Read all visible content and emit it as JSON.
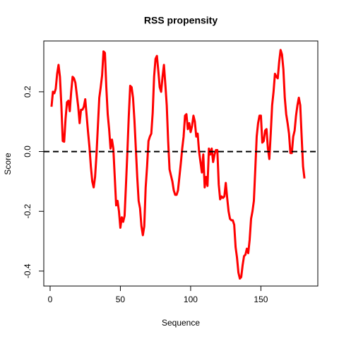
{
  "chart_data": {
    "type": "line",
    "title": "RSS propensity",
    "x_label": "Sequence",
    "y_label": "Score",
    "x": [
      1,
      2,
      3,
      4,
      5,
      6,
      7,
      8,
      9,
      10,
      11,
      12,
      13,
      14,
      15,
      16,
      17,
      18,
      19,
      20,
      21,
      22,
      23,
      24,
      25,
      26,
      27,
      28,
      29,
      30,
      31,
      32,
      33,
      34,
      35,
      36,
      37,
      38,
      39,
      40,
      41,
      42,
      43,
      44,
      45,
      46,
      47,
      48,
      49,
      50,
      51,
      52,
      53,
      54,
      55,
      56,
      57,
      58,
      59,
      60,
      61,
      62,
      63,
      64,
      65,
      66,
      67,
      68,
      69,
      70,
      71,
      72,
      73,
      74,
      75,
      76,
      77,
      78,
      79,
      80,
      81,
      82,
      83,
      84,
      85,
      86,
      87,
      88,
      89,
      90,
      91,
      92,
      93,
      94,
      95,
      96,
      97,
      98,
      99,
      100,
      101,
      102,
      103,
      104,
      105,
      106,
      107,
      108,
      109,
      110,
      111,
      112,
      113,
      114,
      115,
      116,
      117,
      118,
      119,
      120,
      121,
      122,
      123,
      124,
      125,
      126,
      127,
      128,
      129,
      130,
      131,
      132,
      133,
      134,
      135,
      136,
      137,
      138,
      139,
      140,
      141,
      142,
      143,
      144,
      145,
      146,
      147,
      148,
      149,
      150,
      151,
      152,
      153,
      154,
      155,
      156,
      157,
      158,
      159,
      160,
      161,
      162,
      163,
      164,
      165,
      166,
      167,
      168,
      169,
      170,
      171,
      172,
      173,
      174,
      175,
      176,
      177,
      178,
      179,
      180,
      181
    ],
    "values": [
      0.15,
      0.2,
      0.195,
      0.21,
      0.26,
      0.29,
      0.25,
      0.155,
      0.035,
      0.033,
      0.11,
      0.165,
      0.17,
      0.135,
      0.2,
      0.25,
      0.245,
      0.23,
      0.19,
      0.15,
      0.095,
      0.14,
      0.14,
      0.15,
      0.175,
      0.12,
      0.065,
      0.015,
      -0.05,
      -0.1,
      -0.12,
      -0.085,
      -0.01,
      0.085,
      0.18,
      0.215,
      0.255,
      0.335,
      0.33,
      0.215,
      0.125,
      0.075,
      0.01,
      0.04,
      0.01,
      -0.085,
      -0.18,
      -0.165,
      -0.2,
      -0.255,
      -0.22,
      -0.235,
      -0.215,
      -0.11,
      0.0,
      0.12,
      0.22,
      0.215,
      0.18,
      0.105,
      0.01,
      -0.085,
      -0.165,
      -0.19,
      -0.25,
      -0.28,
      -0.25,
      -0.12,
      -0.05,
      0.035,
      0.05,
      0.06,
      0.13,
      0.25,
      0.31,
      0.32,
      0.27,
      0.215,
      0.2,
      0.25,
      0.29,
      0.225,
      0.155,
      0.035,
      -0.06,
      -0.08,
      -0.1,
      -0.13,
      -0.145,
      -0.145,
      -0.13,
      -0.085,
      -0.04,
      0.01,
      0.05,
      0.12,
      0.125,
      0.075,
      0.095,
      0.065,
      0.085,
      0.12,
      0.1,
      0.05,
      0.06,
      0.0,
      -0.035,
      -0.07,
      -0.01,
      -0.12,
      -0.085,
      -0.115,
      0.01,
      -0.01,
      0.01,
      -0.035,
      -0.01,
      0.005,
      0.005,
      -0.11,
      -0.16,
      -0.15,
      -0.155,
      -0.15,
      -0.105,
      -0.155,
      -0.2,
      -0.225,
      -0.23,
      -0.23,
      -0.245,
      -0.32,
      -0.355,
      -0.405,
      -0.425,
      -0.42,
      -0.38,
      -0.35,
      -0.345,
      -0.325,
      -0.34,
      -0.295,
      -0.225,
      -0.2,
      -0.165,
      -0.06,
      0.05,
      0.095,
      0.12,
      0.12,
      0.03,
      0.035,
      0.07,
      0.075,
      0.01,
      -0.025,
      0.06,
      0.155,
      0.2,
      0.26,
      0.25,
      0.245,
      0.3,
      0.34,
      0.325,
      0.275,
      0.18,
      0.125,
      0.095,
      0.06,
      -0.005,
      -0.005,
      0.05,
      0.07,
      0.12,
      0.155,
      0.18,
      0.155,
      0.05,
      -0.05,
      -0.09
    ],
    "color": "#ff0000",
    "xlim": [
      -4.5,
      190.5
    ],
    "xticks": [
      0,
      50,
      100,
      150
    ],
    "ylim": [
      -0.45,
      0.37
    ],
    "yticks": [
      -0.4,
      -0.2,
      {
        "value": 0,
        "label": "0.0"
      },
      0.2
    ],
    "reference_line": {
      "value": 0,
      "style": "dashed",
      "color": "#000000"
    }
  }
}
